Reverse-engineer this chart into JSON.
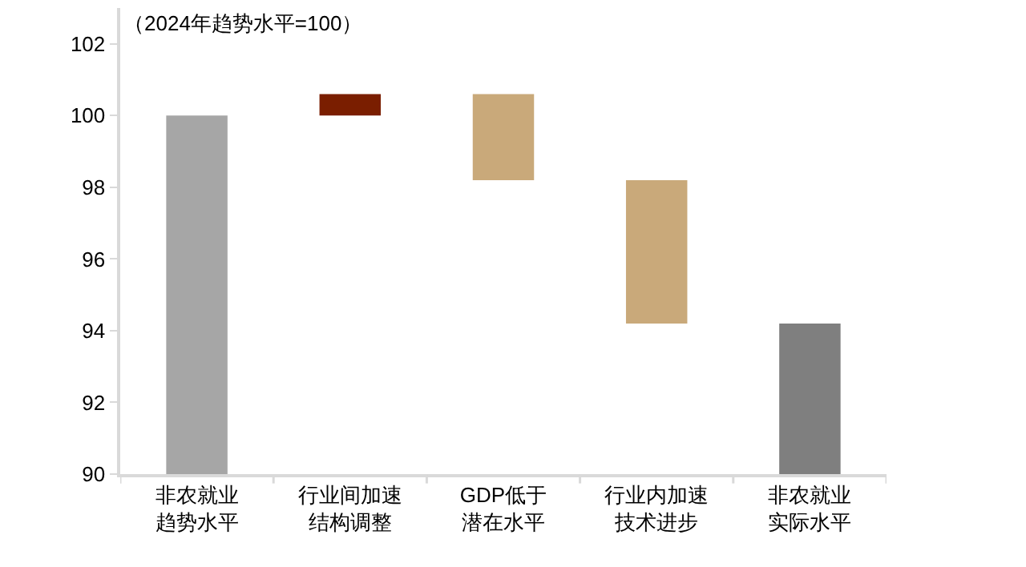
{
  "chart_data": {
    "type": "bar",
    "annotations": [
      "（2024年趋势水平=100）"
    ],
    "categories": [
      "非农就业趋势水平",
      "行业间加速结构调整",
      "GDP低于潜在水平",
      "行业内加速技术进步",
      "非农就业实际水平"
    ],
    "values": [
      10,
      0.6,
      2.4,
      4.0,
      4.2
    ],
    "base": [
      90,
      100,
      98.2,
      94.2,
      90
    ],
    "colors": [
      "#a6a6a6",
      "#7a1e00",
      "#c9a97a",
      "#c9a97a",
      "#7f7f7f"
    ],
    "ylim": [
      90,
      103
    ],
    "yticks": [
      90,
      92,
      94,
      96,
      98,
      100,
      102
    ],
    "legend": false
  }
}
